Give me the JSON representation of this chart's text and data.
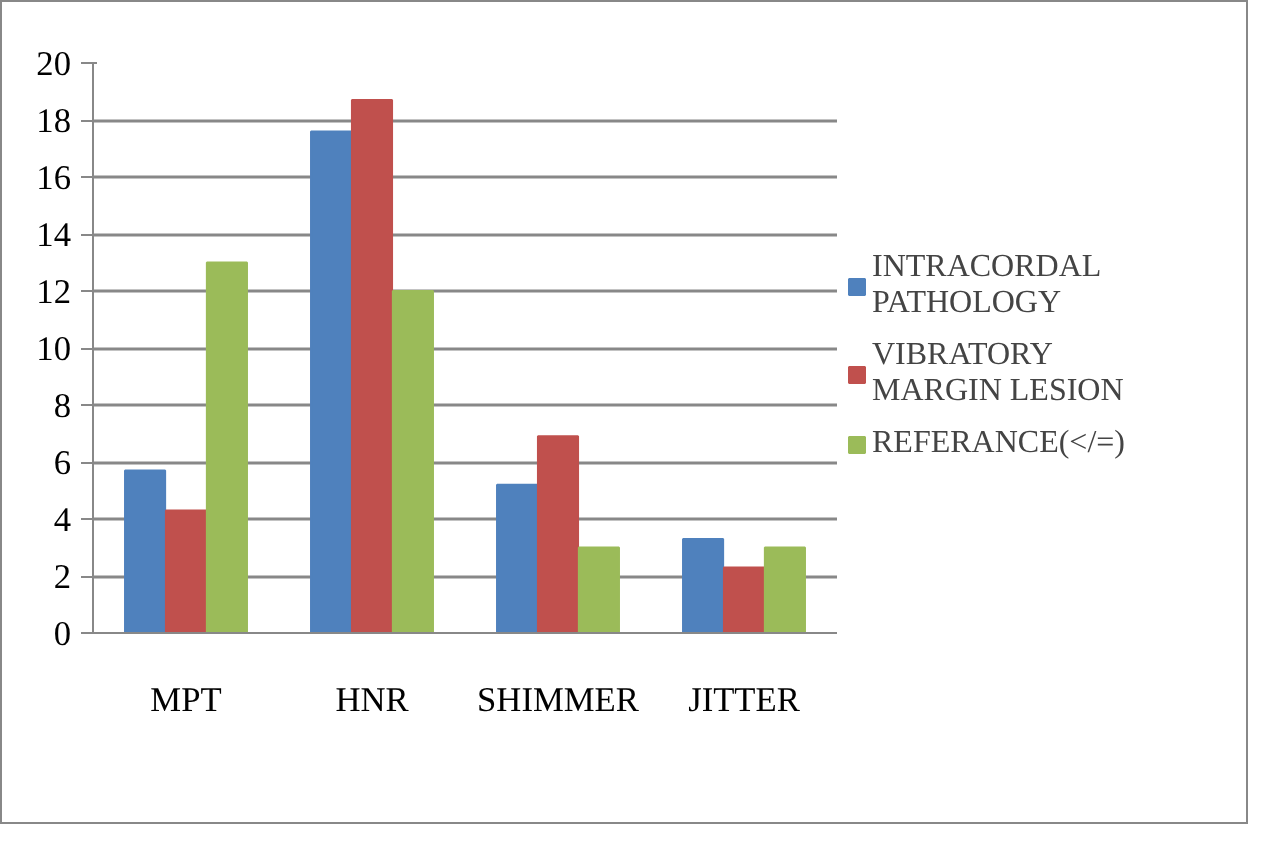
{
  "chart_data": {
    "type": "bar",
    "categories": [
      "MPT",
      "HNR",
      "SHIMMER",
      "JITTER"
    ],
    "series": [
      {
        "name": "INTRACORDAL PATHOLOGY",
        "color": "#4f81bd",
        "values": [
          5.7,
          17.6,
          5.2,
          3.3
        ]
      },
      {
        "name": "VIBRATORY MARGIN LESION",
        "color": "#c0504d",
        "values": [
          4.3,
          18.7,
          6.9,
          2.3
        ]
      },
      {
        "name": "REFERANCE(</=)",
        "color": "#9bbb59",
        "values": [
          13,
          12,
          3,
          3
        ]
      }
    ],
    "ylim": [
      0,
      20
    ],
    "yticks": [
      0,
      2,
      4,
      6,
      8,
      10,
      12,
      14,
      16,
      18,
      20
    ],
    "grid": "y",
    "legend": "right"
  }
}
